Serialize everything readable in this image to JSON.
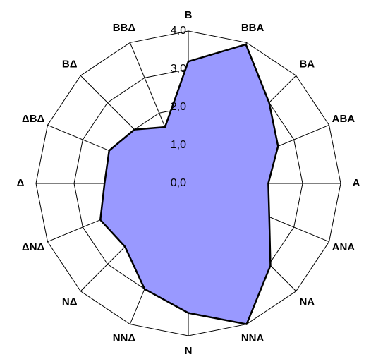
{
  "chart_data": {
    "type": "radar",
    "categories": [
      "B",
      "BBA",
      "BA",
      "ABA",
      "A",
      "ANA",
      "NA",
      "NNA",
      "N",
      "NNΔ",
      "NΔ",
      "ΔNΔ",
      "Δ",
      "ΔBΔ",
      "BΔ",
      "BBΔ"
    ],
    "values": [
      3.2,
      3.95,
      3.0,
      2.55,
      2.1,
      2.3,
      3.05,
      4.0,
      3.4,
      3.0,
      2.35,
      2.5,
      2.2,
      2.25,
      2.0,
      1.6
    ],
    "color": "#9999ff",
    "ylim": [
      0,
      4
    ],
    "yticks": [
      {
        "value": 0,
        "label": "0,0"
      },
      {
        "value": 1,
        "label": "1,0"
      },
      {
        "value": 2,
        "label": "2,0"
      },
      {
        "value": 3,
        "label": "3,0"
      },
      {
        "value": 4,
        "label": "4,0"
      }
    ],
    "grid": true
  }
}
